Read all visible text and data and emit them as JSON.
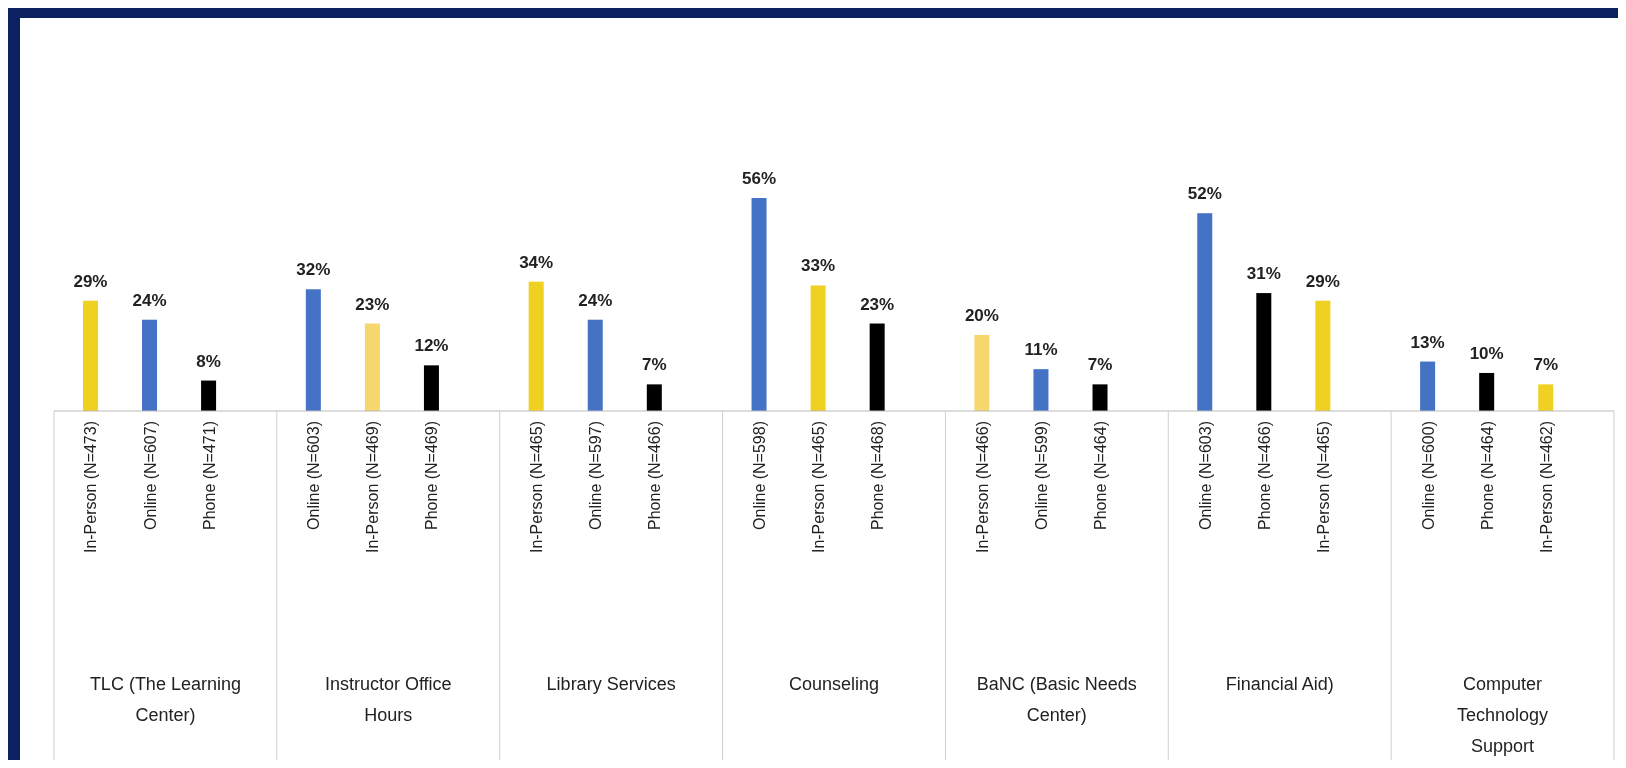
{
  "chart_data": {
    "type": "bar",
    "categories": [
      "In-Person (N=473)",
      "Online (N=607)",
      "Phone (N=471)",
      "Online (N=603)",
      "In-Person (N=469)",
      "Phone (N=469)",
      "In-Person (N=465)",
      "Online (N=597)",
      "Phone (N=466)",
      "Online (N=598)",
      "In-Person (N=465)",
      "Phone (N=468)",
      "In-Person (N=466)",
      "Online (N=599)",
      "Phone (N=464)",
      "Online (N=603)",
      "Phone (N=466)",
      "In-Person (N=465)",
      "Online (N=600)",
      "Phone (N=464)",
      "In-Person (N=462)"
    ],
    "values": [
      29,
      24,
      8,
      32,
      23,
      12,
      34,
      24,
      7,
      56,
      33,
      23,
      20,
      11,
      7,
      52,
      31,
      29,
      13,
      10,
      7
    ],
    "value_labels": [
      "29%",
      "24%",
      "8%",
      "32%",
      "23%",
      "12%",
      "34%",
      "24%",
      "7%",
      "56%",
      "33%",
      "23%",
      "20%",
      "11%",
      "7%",
      "52%",
      "31%",
      "29%",
      "13%",
      "10%",
      "7%"
    ],
    "colors": [
      "#f0d020",
      "#4472c4",
      "#000000",
      "#4472c4",
      "#f5d76e",
      "#000000",
      "#f0d020",
      "#4472c4",
      "#000000",
      "#4472c4",
      "#f0d020",
      "#000000",
      "#f5d76e",
      "#4472c4",
      "#000000",
      "#4472c4",
      "#000000",
      "#f0d020",
      "#4472c4",
      "#000000",
      "#f0d020"
    ],
    "annotations": [
      "TLC (The Learning Center)",
      "Instructor Office Hours",
      "Library Services",
      "Counseling",
      "BaNC (Basic Needs Center)",
      "Financial Aid)",
      "Computer Technology Support"
    ],
    "grid": false
  }
}
